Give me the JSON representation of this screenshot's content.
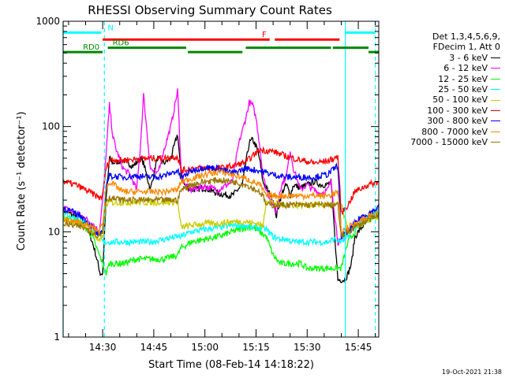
{
  "chart_data": {
    "type": "line",
    "title": "RHESSI Observing Summary Count Rates",
    "xlabel": "Start Time (08-Feb-14 14:18:22)",
    "ylabel": "Count Rate (s⁻¹ detector⁻¹)",
    "yscale": "log",
    "ylim": [
      1,
      1000
    ],
    "xlim_minutes": [
      18.4,
      111.0
    ],
    "y_ticks": [
      {
        "value": 1,
        "label": "1"
      },
      {
        "value": 10,
        "label": "10"
      },
      {
        "value": 100,
        "label": "100"
      },
      {
        "value": 1000,
        "label": "1000"
      }
    ],
    "x_ticks": [
      {
        "value": 30,
        "label": "14:30"
      },
      {
        "value": 45,
        "label": "14:45"
      },
      {
        "value": 60,
        "label": "15:00"
      },
      {
        "value": 75,
        "label": "15:15"
      },
      {
        "value": 90,
        "label": "15:30"
      },
      {
        "value": 105,
        "label": "15:45"
      }
    ],
    "legend_header": [
      "Det 1,3,4,5,6,9,",
      "FDecim 1, Att 0"
    ],
    "series": [
      {
        "name": "3 - 6 keV",
        "color": "#000000",
        "x": [
          18.4,
          24,
          26,
          27.5,
          28.6,
          29.3,
          30,
          31,
          32,
          33,
          36,
          39,
          41,
          42,
          44,
          46,
          48,
          50,
          52,
          53,
          54,
          56,
          60,
          64,
          68,
          71,
          72,
          73,
          74,
          75,
          76,
          77,
          80,
          81,
          82,
          83,
          84,
          85,
          86,
          88,
          90,
          92,
          94,
          96,
          97,
          99,
          101,
          102,
          103,
          104,
          106,
          108,
          111
        ],
        "y": [
          16,
          13,
          10,
          7,
          5,
          4,
          4,
          20,
          50,
          45,
          48,
          42,
          50,
          45,
          25,
          50,
          45,
          50,
          85,
          35,
          28,
          25,
          26,
          23,
          22,
          28,
          45,
          70,
          75,
          65,
          50,
          30,
          20,
          14,
          20,
          25,
          28,
          22,
          28,
          26,
          28,
          30,
          28,
          28,
          30,
          3.5,
          3.5,
          4,
          5,
          9,
          11,
          13,
          15
        ]
      },
      {
        "name": "6 - 12 keV",
        "color": "#ff00ff",
        "x": [
          18.4,
          24,
          27,
          29,
          30,
          31,
          32,
          33,
          34,
          36,
          38,
          40,
          41,
          42,
          44,
          46,
          48,
          50,
          52,
          53,
          54,
          56,
          60,
          64,
          68,
          70,
          72,
          73,
          74,
          75,
          76,
          77,
          78,
          80,
          81,
          82,
          83,
          84,
          85,
          86,
          88,
          90,
          92,
          94,
          96,
          97,
          99,
          100,
          102,
          104,
          106,
          108,
          111
        ],
        "y": [
          17,
          14,
          12,
          10,
          20,
          55,
          160,
          80,
          60,
          40,
          35,
          25,
          60,
          200,
          40,
          35,
          60,
          100,
          220,
          40,
          28,
          25,
          27,
          25,
          30,
          70,
          120,
          170,
          160,
          120,
          70,
          35,
          25,
          18,
          15,
          25,
          30,
          35,
          60,
          40,
          25,
          28,
          25,
          23,
          25,
          30,
          8,
          8,
          10,
          12,
          13,
          14,
          16
        ]
      },
      {
        "name": "12 - 25 keV",
        "color": "#00ff00",
        "x": [
          18.4,
          24,
          27,
          29,
          30,
          31,
          32,
          33,
          36,
          40,
          44,
          48,
          52,
          53,
          56,
          60,
          64,
          68,
          72,
          74,
          76,
          78,
          80,
          82,
          84,
          86,
          88,
          90,
          92,
          94,
          96,
          98,
          100,
          102,
          104,
          106,
          108,
          111
        ],
        "y": [
          14,
          12,
          9,
          6,
          5,
          4,
          5,
          5,
          5,
          5.5,
          5.5,
          5.5,
          6,
          7,
          8,
          8.5,
          9,
          10,
          11,
          11,
          10,
          9,
          6,
          5,
          5,
          5,
          5,
          4.5,
          4.5,
          4.5,
          4.5,
          4.5,
          4.5,
          8,
          10,
          12,
          13,
          15
        ]
      },
      {
        "name": "25 - 50 keV",
        "color": "#00ffff",
        "x": [
          18.4,
          24,
          27,
          29,
          30,
          32,
          34,
          36,
          40,
          44,
          48,
          52,
          53,
          56,
          60,
          64,
          68,
          72,
          74,
          76,
          78,
          80,
          82,
          84,
          86,
          88,
          90,
          92,
          94,
          96,
          98,
          100,
          102,
          104,
          106,
          108,
          111
        ],
        "y": [
          15,
          13,
          11,
          9,
          8,
          8,
          8,
          8,
          8,
          8,
          8.5,
          9,
          9,
          10,
          10.5,
          11,
          11.5,
          11.5,
          11,
          11,
          10.5,
          9,
          8.5,
          8.5,
          8,
          8,
          8,
          8,
          8,
          8,
          8.5,
          8,
          9,
          11,
          12,
          14,
          16
        ]
      },
      {
        "name": "50 - 100 keV",
        "color": "#cccc00",
        "x": [
          18.4,
          24,
          27,
          29,
          30,
          31,
          32,
          36,
          40,
          44,
          48,
          52,
          53,
          56,
          60,
          64,
          68,
          72,
          74,
          76,
          77,
          78,
          80,
          82,
          84,
          86,
          88,
          90,
          92,
          94,
          96,
          98,
          100,
          102,
          104,
          106,
          108,
          111
        ],
        "y": [
          13,
          12,
          10,
          8,
          9,
          18,
          19,
          19,
          19,
          19,
          19,
          19,
          11,
          11.5,
          12,
          12,
          12.5,
          12.5,
          12,
          12,
          11,
          20,
          19,
          18,
          18,
          18,
          18,
          18,
          18,
          18,
          18,
          18,
          18,
          10,
          11,
          12,
          13,
          14
        ]
      },
      {
        "name": "100 - 300 keV",
        "color": "#ff0000",
        "x": [
          18.4,
          22,
          24,
          26,
          28,
          29,
          30,
          31,
          32,
          36,
          40,
          44,
          48,
          52,
          53,
          56,
          60,
          64,
          68,
          72,
          76,
          80,
          84,
          88,
          92,
          96,
          98,
          99,
          100,
          102,
          104,
          106,
          108,
          111
        ],
        "y": [
          30,
          28,
          26,
          24,
          22,
          21,
          22,
          40,
          48,
          48,
          49,
          50,
          50,
          52,
          38,
          40,
          40,
          40,
          42,
          46,
          60,
          58,
          52,
          48,
          45,
          47,
          50,
          52,
          15,
          18,
          24,
          26,
          28,
          30
        ]
      },
      {
        "name": "300 - 800 keV",
        "color": "#0000ff",
        "x": [
          18.4,
          24,
          27,
          29,
          30,
          31,
          32,
          36,
          40,
          44,
          48,
          52,
          53,
          56,
          60,
          64,
          68,
          72,
          76,
          80,
          84,
          88,
          92,
          96,
          98,
          99,
          100,
          102,
          104,
          106,
          108,
          111
        ],
        "y": [
          17,
          14,
          11,
          9,
          10,
          28,
          34,
          33,
          34,
          33,
          34,
          38,
          32,
          38,
          41,
          40,
          36,
          40,
          38,
          35,
          33,
          33,
          33,
          35,
          40,
          43,
          9,
          10,
          12,
          14,
          15,
          17
        ]
      },
      {
        "name": "800 - 7000 keV",
        "color": "#ff8800",
        "x": [
          18.4,
          24,
          27,
          29,
          30,
          31,
          32,
          36,
          40,
          44,
          48,
          52,
          53,
          56,
          60,
          64,
          68,
          72,
          74,
          76,
          77,
          78,
          80,
          84,
          88,
          92,
          96,
          98,
          99,
          100,
          102,
          104,
          106,
          108,
          111
        ],
        "y": [
          13,
          12,
          11,
          10,
          12,
          26,
          30,
          24,
          24,
          24,
          24,
          25,
          30,
          32,
          35,
          37,
          35,
          32,
          30,
          28,
          25,
          22,
          22,
          22,
          22,
          22,
          22,
          23,
          24,
          10,
          11,
          12,
          13,
          14,
          15
        ]
      },
      {
        "name": "7000 - 15000 keV",
        "color": "#997700",
        "x": [
          18.4,
          24,
          27,
          29,
          30,
          31,
          32,
          36,
          40,
          44,
          48,
          52,
          53,
          56,
          60,
          64,
          68,
          72,
          74,
          76,
          77,
          78,
          80,
          84,
          88,
          92,
          96,
          98,
          99,
          100,
          102,
          104,
          106,
          108,
          111
        ],
        "y": [
          12,
          11,
          10,
          9,
          10,
          20,
          21,
          20,
          20,
          20,
          20,
          20,
          25,
          28,
          30,
          31,
          30,
          28,
          26,
          24,
          22,
          18,
          18,
          18,
          18,
          18,
          18,
          18,
          18,
          9,
          10,
          11,
          12,
          13,
          14
        ]
      }
    ],
    "annotations": [
      {
        "label": "N",
        "color": "#00ffff",
        "x_start": 18.4,
        "x_end": 29.6,
        "level": 780,
        "kind": "bar"
      },
      {
        "label": "",
        "color": "#00ffff",
        "x_start": 101.2,
        "x_end": 110.0,
        "level": 780,
        "kind": "bar"
      },
      {
        "label": "F",
        "color": "#ff0000",
        "x_start": 30.0,
        "x_end": 79.0,
        "level": 670,
        "kind": "bar"
      },
      {
        "label": "",
        "color": "#ff0000",
        "x_start": 80.5,
        "x_end": 99.5,
        "level": 670,
        "kind": "bar"
      },
      {
        "label": "RD0",
        "color": "#008800",
        "x_start": 18.4,
        "x_end": 30.0,
        "level": 510,
        "kind": "bar"
      },
      {
        "label": "RD6",
        "color": "#008800",
        "x_start": 31.5,
        "x_end": 54.5,
        "level": 560,
        "kind": "bar"
      },
      {
        "label": "",
        "color": "#008800",
        "x_start": 55.0,
        "x_end": 71.0,
        "level": 510,
        "kind": "bar"
      },
      {
        "label": "",
        "color": "#008800",
        "x_start": 72.0,
        "x_end": 97.0,
        "level": 560,
        "kind": "bar"
      },
      {
        "label": "",
        "color": "#008800",
        "x_start": 97.5,
        "x_end": 108.0,
        "level": 560,
        "kind": "bar"
      },
      {
        "label": "",
        "color": "#008800",
        "x_start": 108.0,
        "x_end": 111.0,
        "level": 510,
        "kind": "bar"
      }
    ],
    "vlines_solid": [
      18.4,
      101.2
    ],
    "vlines_dashed": [
      30.5,
      110.0
    ],
    "vline_color": "#00ffff",
    "grid": false,
    "legend_position": "right"
  },
  "footer_timestamp": "19-Oct-2021 21:38"
}
